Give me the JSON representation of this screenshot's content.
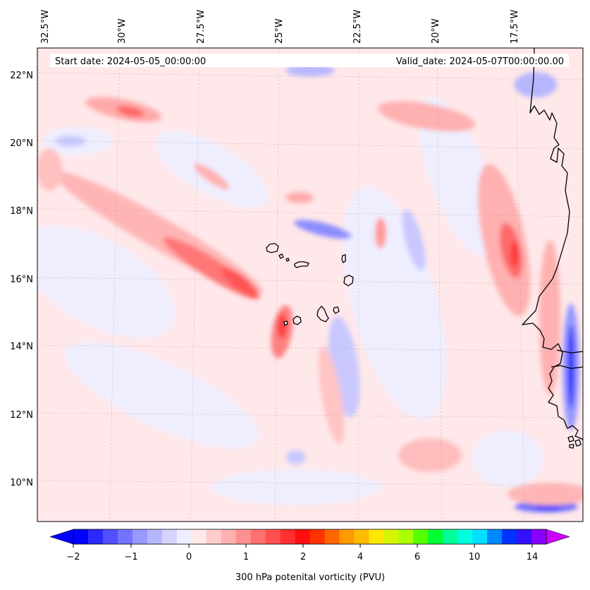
{
  "map": {
    "lon_labels": [
      "32.5°W",
      "30°W",
      "27.5°W",
      "25°W",
      "22.5°W",
      "20°W",
      "17.5°W"
    ],
    "lat_labels": [
      "22°N",
      "20°N",
      "18°N",
      "16°N",
      "14°N",
      "12°N",
      "10°N"
    ],
    "start_date": "Start date: 2024-05-05_00:00:00",
    "valid_date": "Valid_date: 2024-05-07T00:00:00.00",
    "field": "300 hPa potential vorticity",
    "region": "Cape Verde and West African coast (Senegal)"
  },
  "colorbar": {
    "label": "300 hPa potenital vorticity (PVU)",
    "tick_labels": [
      "−2",
      "−1",
      "0",
      "1",
      "2",
      "4",
      "6",
      "10",
      "14"
    ],
    "colors": [
      "#0000ff",
      "#2a2aff",
      "#5050ff",
      "#7373ff",
      "#9898ff",
      "#b6b6ff",
      "#d4d4ff",
      "#eeeeff",
      "#ffeaea",
      "#ffcccc",
      "#ffb0b0",
      "#ff9090",
      "#ff7070",
      "#ff5050",
      "#ff3030",
      "#ff1010",
      "#ff3300",
      "#ff6600",
      "#ff9900",
      "#ffbb00",
      "#ffe600",
      "#d5f500",
      "#aaff00",
      "#55ff00",
      "#00ff33",
      "#00ff99",
      "#00ffdd",
      "#00dfff",
      "#0088ff",
      "#0033ff",
      "#3311ff",
      "#8800ff"
    ],
    "under_color": "#0000ff",
    "over_color": "#cc00ff"
  }
}
